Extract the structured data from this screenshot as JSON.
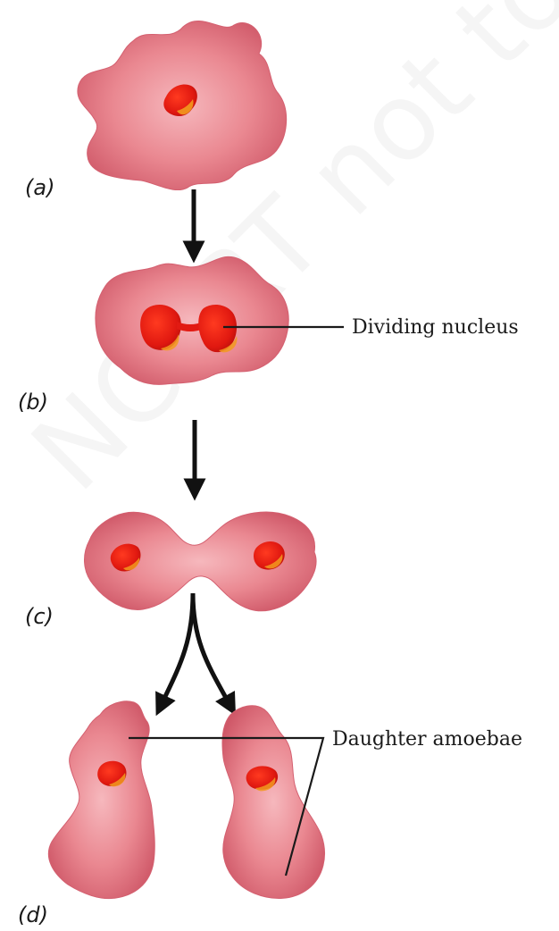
{
  "stage_labels": {
    "a": "(a)",
    "b": "(b)",
    "c": "(c)",
    "d": "(d)"
  },
  "callouts": {
    "dividing_nucleus": "Dividing nucleus",
    "daughter_amoebae": "Daughter amoebae"
  },
  "watermark": "NCERT not to be republished",
  "colors": {
    "cell_body": "#e57a86",
    "cell_edge": "#c64a5c",
    "nucleus": "#e41e14",
    "nucleus_shade": "#f29a1e",
    "arrow": "#111111"
  }
}
